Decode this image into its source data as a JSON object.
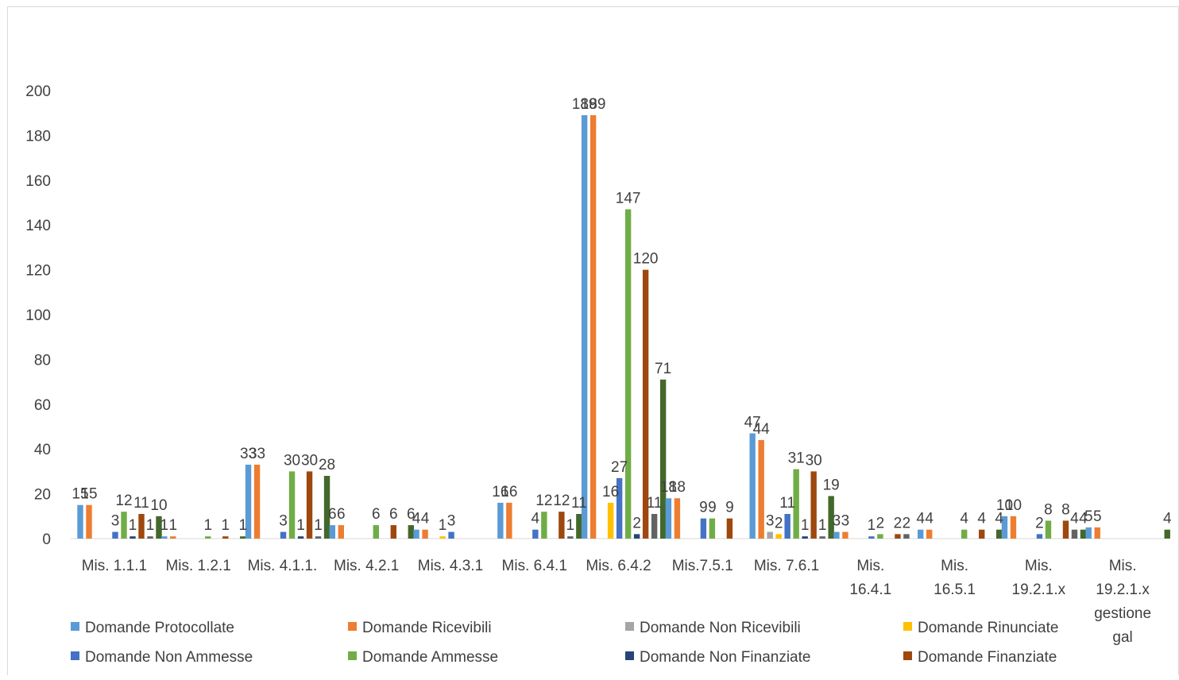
{
  "chart_data": {
    "type": "bar",
    "categories": [
      "Mis. 1.1.1",
      "Mis. 1.2.1",
      "Mis. 4.1.1.",
      "Mis. 4.2.1",
      "Mis. 4.3.1",
      "Mis. 6.4.1",
      "Mis. 6.4.2",
      "Mis.7.5.1",
      "Mis. 7.6.1",
      "Mis. 16.4.1",
      "Mis. 16.5.1",
      "Mis. 19.2.1.x",
      "Mis. 19.2.1.x gestione gal"
    ],
    "category_lines": [
      [
        "Mis. 1.1.1"
      ],
      [
        "Mis. 1.2.1"
      ],
      [
        "Mis. 4.1.1."
      ],
      [
        "Mis. 4.2.1"
      ],
      [
        "Mis. 4.3.1"
      ],
      [
        "Mis. 6.4.1"
      ],
      [
        "Mis. 6.4.2"
      ],
      [
        "Mis.7.5.1"
      ],
      [
        "Mis. 7.6.1"
      ],
      [
        "Mis.",
        "16.4.1"
      ],
      [
        "Mis.",
        "16.5.1"
      ],
      [
        "Mis.",
        "19.2.1.x"
      ],
      [
        "Mis.",
        "19.2.1.x",
        "gestione",
        "gal"
      ]
    ],
    "series": [
      {
        "name": "Domande Protocollate",
        "color": "#5b9bd5",
        "values": [
          15,
          1,
          33,
          6,
          4,
          16,
          189,
          18,
          47,
          3,
          4,
          10,
          5
        ]
      },
      {
        "name": "Domande Ricevibili",
        "color": "#ed7d31",
        "values": [
          15,
          1,
          33,
          6,
          4,
          16,
          189,
          18,
          44,
          3,
          4,
          10,
          5
        ]
      },
      {
        "name": "Domande Non Ricevibili",
        "color": "#a5a5a5",
        "values": [
          0,
          0,
          0,
          0,
          0,
          0,
          0,
          0,
          3,
          0,
          0,
          0,
          0
        ]
      },
      {
        "name": "Domande Rinunciate",
        "color": "#ffc000",
        "values": [
          0,
          0,
          0,
          0,
          1,
          0,
          16,
          0,
          2,
          0,
          0,
          0,
          0
        ]
      },
      {
        "name": "Domande Non Ammesse",
        "color": "#4472c4",
        "values": [
          3,
          0,
          3,
          0,
          3,
          4,
          27,
          9,
          11,
          1,
          0,
          2,
          0
        ]
      },
      {
        "name": "Domande Ammesse",
        "color": "#70ad47",
        "values": [
          12,
          1,
          30,
          6,
          0,
          12,
          147,
          9,
          31,
          2,
          4,
          8,
          0
        ]
      },
      {
        "name": "Domande Non Finanziate",
        "color": "#264478",
        "values": [
          1,
          0,
          1,
          0,
          0,
          0,
          2,
          0,
          1,
          0,
          0,
          0,
          0
        ]
      },
      {
        "name": "Domande Finanziate",
        "color": "#9e480e",
        "values": [
          11,
          1,
          30,
          6,
          0,
          12,
          120,
          9,
          30,
          2,
          4,
          8,
          0
        ]
      },
      {
        "name": "",
        "color": "#636363",
        "values": [
          1,
          0,
          1,
          0,
          0,
          1,
          11,
          0,
          1,
          2,
          0,
          4,
          0
        ]
      },
      {
        "name": "",
        "color": "#43682b",
        "values": [
          10,
          1,
          28,
          6,
          0,
          11,
          71,
          0,
          19,
          0,
          4,
          4,
          4
        ]
      }
    ],
    "ylim": [
      0,
      200
    ],
    "yticks": [
      0,
      20,
      40,
      60,
      80,
      100,
      120,
      140,
      160,
      180,
      200
    ],
    "grid": false,
    "legend_position": "bottom",
    "title": "",
    "xlabel": "",
    "ylabel": ""
  }
}
